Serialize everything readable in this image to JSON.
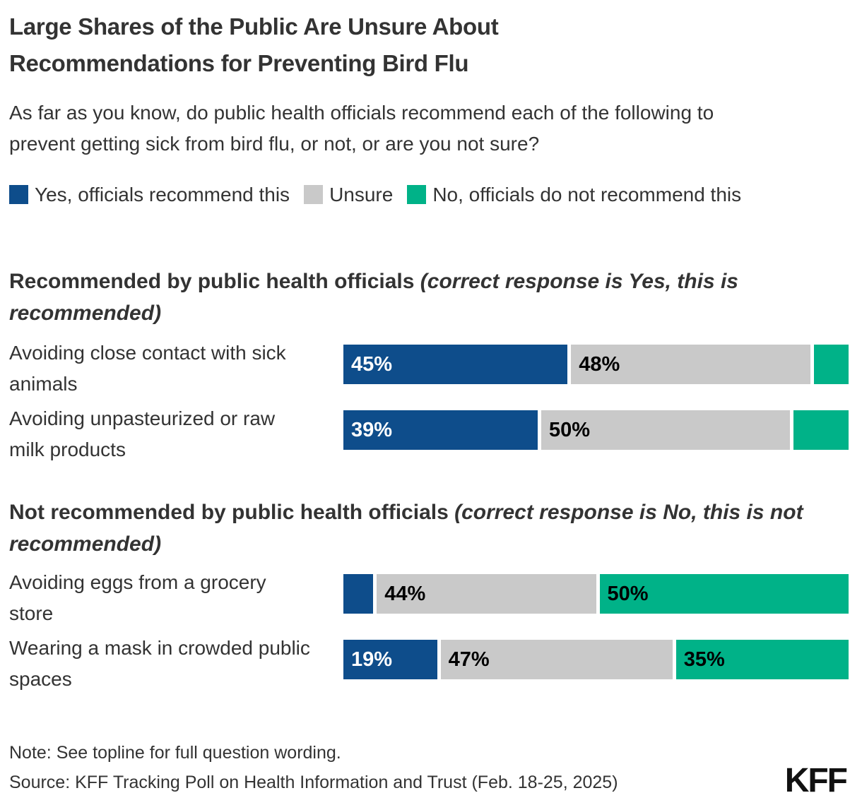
{
  "header": {
    "title": "Large Shares of the Public Are Unsure About Recommendations for Preventing Bird Flu",
    "subtitle": "As far as you know, do public health officials recommend each of the following to prevent getting sick from bird flu, or not, or are you not sure?"
  },
  "legend": {
    "items": [
      {
        "key": "yes",
        "label": "Yes, officials recommend this",
        "color": "#0E4D8B"
      },
      {
        "key": "unsure",
        "label": "Unsure",
        "color": "#C9C9C9"
      },
      {
        "key": "no",
        "label": "No, officials do not recommend this",
        "color": "#00B288"
      }
    ]
  },
  "chart_data": {
    "type": "bar",
    "subtype": "horizontal-stacked",
    "stacked": true,
    "xlim": [
      0,
      100
    ],
    "grid": false,
    "legend_position": "top",
    "series_names": [
      "Yes, officials recommend this",
      "Unsure",
      "No, officials do not recommend this"
    ],
    "colors": {
      "yes": "#0E4D8B",
      "unsure": "#C9C9C9",
      "no": "#00B288"
    },
    "label_colors": {
      "yes": "#FFFFFF",
      "unsure": "#000000",
      "no": "#000000"
    },
    "sections": [
      {
        "heading": "Recommended by public health officials ",
        "heading_note": "(correct response is Yes, this is recommended)",
        "rows": [
          {
            "category": "Avoiding close contact with sick animals",
            "values": {
              "yes": 45,
              "unsure": 48,
              "no": 7
            },
            "labels": {
              "yes": "45%",
              "unsure": "48%",
              "no": null
            }
          },
          {
            "category": "Avoiding unpasteurized or raw milk products",
            "values": {
              "yes": 39,
              "unsure": 50,
              "no": 11
            },
            "labels": {
              "yes": "39%",
              "unsure": "50%",
              "no": null
            }
          }
        ]
      },
      {
        "heading": "Not recommended by public health officials ",
        "heading_note": "(correct response is No, this is not recommended)",
        "rows": [
          {
            "category": "Avoiding eggs from a grocery store",
            "values": {
              "yes": 6,
              "unsure": 44,
              "no": 50
            },
            "labels": {
              "yes": null,
              "unsure": "44%",
              "no": "50%"
            }
          },
          {
            "category": "Wearing a mask in crowded public spaces",
            "values": {
              "yes": 19,
              "unsure": 47,
              "no": 35
            },
            "labels": {
              "yes": "19%",
              "unsure": "47%",
              "no": "35%"
            }
          }
        ]
      }
    ]
  },
  "footer": {
    "note": "Note: See topline for full question wording.",
    "source": "Source: KFF Tracking Poll on Health Information and Trust (Feb. 18-25, 2025)",
    "logo": "KFF"
  }
}
